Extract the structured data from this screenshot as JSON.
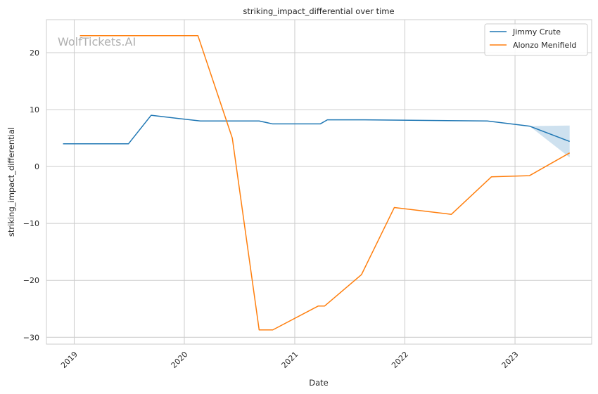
{
  "chart_data": {
    "type": "line",
    "title": "striking_impact_differential over time",
    "xlabel": "Date",
    "ylabel": "striking_impact_differential",
    "watermark": "WolfTickets.AI",
    "xlim": [
      "2018-10-01",
      "2023-09-12"
    ],
    "ylim": [
      -31.2,
      25.8
    ],
    "x_ticks": [
      {
        "date": "2019-01-01",
        "label": "2019"
      },
      {
        "date": "2020-01-01",
        "label": "2020"
      },
      {
        "date": "2021-01-01",
        "label": "2021"
      },
      {
        "date": "2022-01-01",
        "label": "2022"
      },
      {
        "date": "2023-01-01",
        "label": "2023"
      }
    ],
    "y_ticks": [
      {
        "value": 20,
        "label": "20"
      },
      {
        "value": 10,
        "label": "10"
      },
      {
        "value": 0,
        "label": "0"
      },
      {
        "value": -10,
        "label": "−10"
      },
      {
        "value": -20,
        "label": "−20"
      },
      {
        "value": -30,
        "label": "−30"
      }
    ],
    "grid": true,
    "legend_position": "top-right",
    "series": [
      {
        "name": "Jimmy Crute",
        "color": "#1f77b4",
        "points": [
          [
            "2018-11-25",
            4.0
          ],
          [
            "2019-06-30",
            4.0
          ],
          [
            "2019-09-13",
            9.0
          ],
          [
            "2020-02-23",
            8.0
          ],
          [
            "2020-09-05",
            8.0
          ],
          [
            "2020-10-19",
            7.5
          ],
          [
            "2021-03-27",
            7.5
          ],
          [
            "2021-04-19",
            8.2
          ],
          [
            "2021-08-20",
            8.2
          ],
          [
            "2022-10-01",
            8.0
          ],
          [
            "2023-02-18",
            7.1
          ],
          [
            "2023-07-01",
            4.4
          ]
        ],
        "band": [
          [
            "2023-02-18",
            7.1,
            7.1
          ],
          [
            "2023-07-01",
            1.6,
            7.2
          ]
        ]
      },
      {
        "name": "Alonzo Menifield",
        "color": "#ff7f0e",
        "points": [
          [
            "2019-01-20",
            23.0
          ],
          [
            "2020-02-15",
            23.0
          ],
          [
            "2020-06-08",
            5.0
          ],
          [
            "2020-09-05",
            -28.7
          ],
          [
            "2020-10-20",
            -28.7
          ],
          [
            "2021-03-20",
            -24.5
          ],
          [
            "2021-04-10",
            -24.5
          ],
          [
            "2021-08-10",
            -19.0
          ],
          [
            "2021-11-27",
            -7.2
          ],
          [
            "2022-06-04",
            -8.4
          ],
          [
            "2022-10-15",
            -1.8
          ],
          [
            "2023-02-18",
            -1.6
          ],
          [
            "2023-07-01",
            2.4
          ]
        ]
      }
    ]
  }
}
